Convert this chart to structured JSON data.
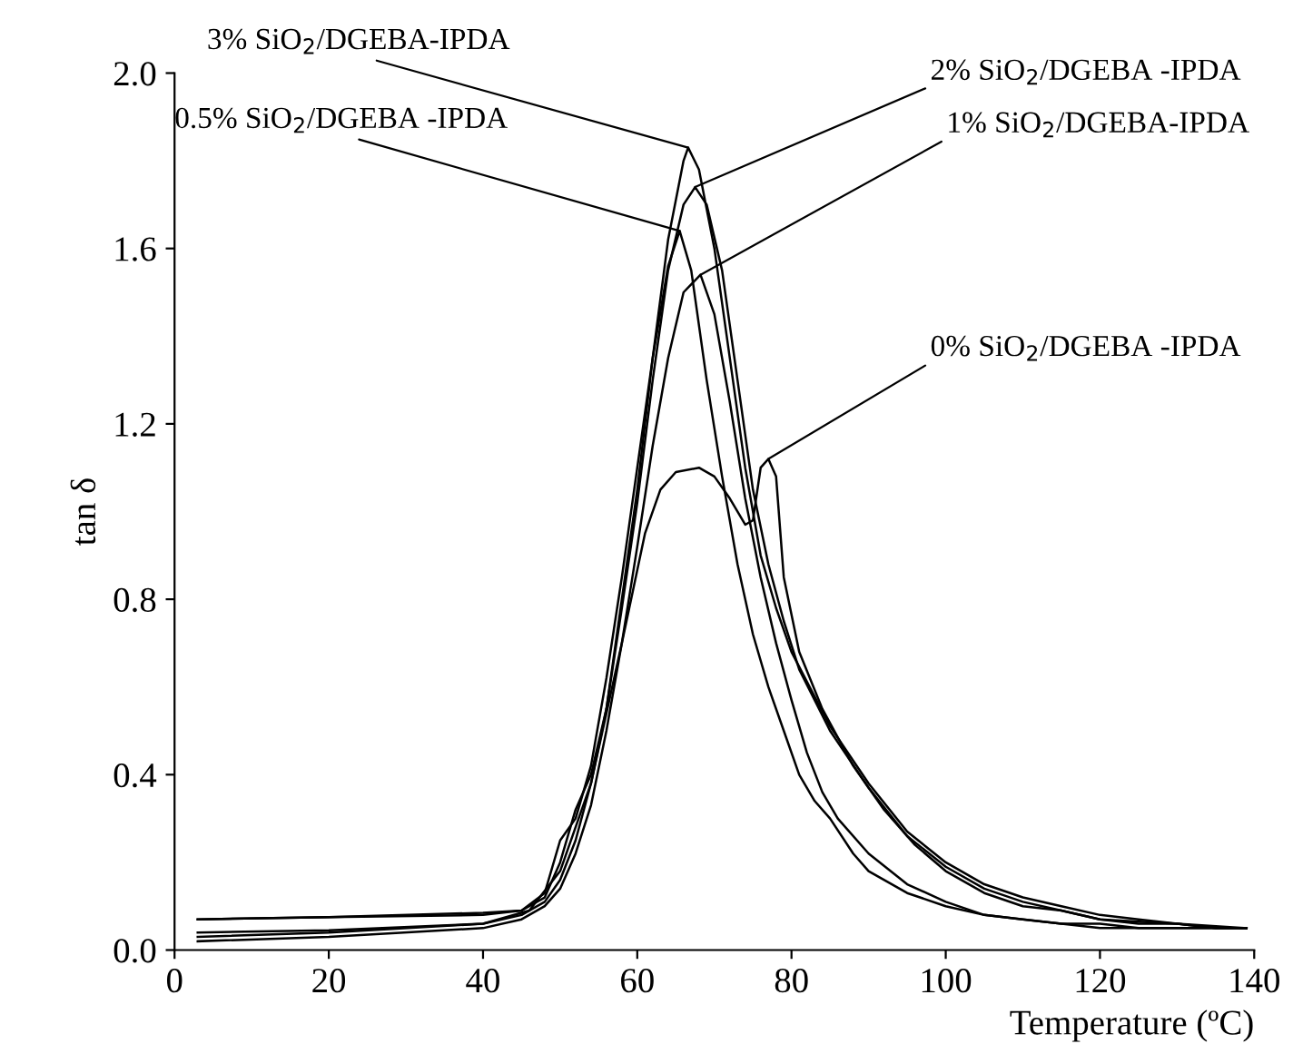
{
  "chart_data": {
    "type": "line",
    "xlabel": "Temperature (ºC)",
    "ylabel": "tan δ",
    "xlim": [
      0,
      140
    ],
    "ylim": [
      0,
      2.0
    ],
    "xticks": [
      0,
      20,
      40,
      60,
      80,
      100,
      120,
      140
    ],
    "yticks": [
      {
        "value": 0,
        "label": "0.0"
      },
      {
        "value": 0.4,
        "label": "0.4"
      },
      {
        "value": 0.8,
        "label": "0.8"
      },
      {
        "value": 1.2,
        "label": "1.2"
      },
      {
        "value": 1.6,
        "label": "1.6"
      },
      {
        "value": 2.0,
        "label": "2.0"
      }
    ],
    "grid": false,
    "legend": false,
    "series": [
      {
        "name": "3% SiO$_{2}$/DGEBA-IPDA",
        "color": "#000000",
        "x": [
          3,
          20,
          40,
          45,
          48,
          50,
          52,
          54,
          56,
          58,
          60,
          62,
          64,
          66,
          66.6,
          68,
          70,
          72,
          74,
          76,
          78,
          80,
          85,
          90,
          95,
          100,
          105,
          110,
          115,
          120,
          125,
          130,
          135,
          139
        ],
        "values": [
          0.07,
          0.075,
          0.085,
          0.09,
          0.12,
          0.2,
          0.32,
          0.4,
          0.55,
          0.8,
          1.05,
          1.35,
          1.62,
          1.8,
          1.83,
          1.78,
          1.6,
          1.35,
          1.1,
          0.9,
          0.78,
          0.68,
          0.51,
          0.38,
          0.27,
          0.2,
          0.15,
          0.12,
          0.1,
          0.08,
          0.07,
          0.06,
          0.05,
          0.05
        ]
      },
      {
        "name": "2% SiO$_{2}$/DGEBA -IPDA",
        "color": "#000000",
        "x": [
          3,
          20,
          40,
          45,
          48,
          50,
          52,
          54,
          56,
          58,
          60,
          62,
          64,
          66,
          67.5,
          69,
          71,
          73,
          75,
          77,
          79,
          81,
          85,
          90,
          95,
          100,
          105,
          110,
          115,
          120,
          125,
          130,
          135,
          139
        ],
        "values": [
          0.04,
          0.045,
          0.06,
          0.08,
          0.11,
          0.16,
          0.25,
          0.38,
          0.55,
          0.78,
          1.02,
          1.3,
          1.55,
          1.7,
          1.74,
          1.7,
          1.55,
          1.3,
          1.05,
          0.88,
          0.75,
          0.64,
          0.5,
          0.37,
          0.26,
          0.19,
          0.14,
          0.11,
          0.09,
          0.07,
          0.06,
          0.06,
          0.05,
          0.05
        ]
      },
      {
        "name": "0.5% SiO$_{2}$/DGEBA -IPDA",
        "color": "#000000",
        "x": [
          3,
          20,
          40,
          45,
          48,
          50,
          52,
          54,
          56,
          58,
          60,
          62,
          64,
          65.5,
          67,
          69,
          71,
          73,
          75,
          77,
          79,
          81,
          83,
          85,
          88,
          90,
          95,
          100,
          105,
          110,
          115,
          120,
          125,
          130,
          135,
          139
        ],
        "values": [
          0.07,
          0.075,
          0.08,
          0.09,
          0.13,
          0.25,
          0.3,
          0.42,
          0.62,
          0.85,
          1.1,
          1.35,
          1.56,
          1.64,
          1.55,
          1.3,
          1.08,
          0.88,
          0.72,
          0.6,
          0.5,
          0.4,
          0.34,
          0.3,
          0.22,
          0.18,
          0.13,
          0.1,
          0.08,
          0.07,
          0.06,
          0.06,
          0.05,
          0.05,
          0.05,
          0.05
        ]
      },
      {
        "name": "1% SiO$_{2}$/DGEBA-IPDA",
        "color": "#000000",
        "x": [
          3,
          20,
          40,
          45,
          48,
          50,
          52,
          54,
          56,
          58,
          60,
          62,
          64,
          66,
          68.2,
          70,
          72,
          74,
          76,
          78,
          80,
          82,
          84,
          86,
          90,
          95,
          100,
          105,
          110,
          115,
          120,
          125,
          130,
          135,
          139
        ],
        "values": [
          0.02,
          0.03,
          0.05,
          0.07,
          0.1,
          0.14,
          0.22,
          0.33,
          0.5,
          0.7,
          0.92,
          1.15,
          1.35,
          1.5,
          1.54,
          1.45,
          1.25,
          1.03,
          0.85,
          0.7,
          0.57,
          0.45,
          0.36,
          0.3,
          0.22,
          0.15,
          0.11,
          0.08,
          0.07,
          0.06,
          0.05,
          0.05,
          0.05,
          0.05,
          0.05
        ]
      },
      {
        "name": "0% SiO$_{2}$/DGEBA -IPDA",
        "color": "#000000",
        "x": [
          3,
          20,
          40,
          46,
          50,
          54,
          58,
          61,
          63,
          65,
          68,
          70,
          72,
          74,
          75,
          76,
          77,
          78,
          79,
          81,
          84,
          88,
          92,
          96,
          100,
          105,
          110,
          115,
          120,
          130,
          139
        ],
        "values": [
          0.03,
          0.04,
          0.06,
          0.09,
          0.18,
          0.38,
          0.7,
          0.95,
          1.05,
          1.09,
          1.1,
          1.08,
          1.03,
          0.97,
          0.98,
          1.1,
          1.12,
          1.08,
          0.85,
          0.68,
          0.55,
          0.42,
          0.32,
          0.24,
          0.18,
          0.13,
          0.1,
          0.09,
          0.07,
          0.06,
          0.05
        ]
      }
    ]
  }
}
